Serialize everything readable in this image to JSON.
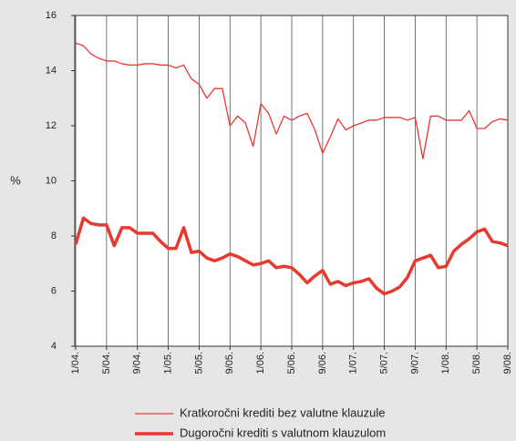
{
  "chart_data": {
    "type": "line",
    "y_label": "%",
    "categories": [
      "1/04.",
      null,
      null,
      null,
      "5/04.",
      null,
      null,
      null,
      "9/04.",
      null,
      null,
      null,
      "1/05.",
      null,
      null,
      null,
      "5/05.",
      null,
      null,
      null,
      "9/05.",
      null,
      null,
      null,
      "1/06.",
      null,
      null,
      null,
      "5/06.",
      null,
      null,
      null,
      "9/06.",
      null,
      null,
      null,
      "1/07.",
      null,
      null,
      null,
      "5/07.",
      null,
      null,
      null,
      "9/07.",
      null,
      null,
      null,
      "1/08.",
      null,
      null,
      null,
      "5/08.",
      null,
      null,
      null,
      "9/08."
    ],
    "series": [
      {
        "name": "Kratkoročni krediti bez valutne klauzule",
        "color": "#e8392f",
        "width": 1.3,
        "values": [
          15.0,
          14.9,
          14.6,
          14.45,
          14.35,
          14.35,
          14.25,
          14.2,
          14.2,
          14.25,
          14.25,
          14.2,
          14.2,
          14.1,
          14.2,
          13.7,
          13.5,
          13.0,
          13.35,
          13.35,
          12.0,
          12.35,
          12.1,
          11.25,
          12.8,
          12.45,
          11.7,
          12.35,
          12.2,
          12.35,
          12.45,
          11.85,
          11.0,
          11.6,
          12.25,
          11.85,
          12.0,
          12.1,
          12.2,
          12.2,
          12.3,
          12.3,
          12.3,
          12.2,
          12.3,
          10.8,
          12.35,
          12.35,
          12.2,
          12.2,
          12.2,
          12.55,
          11.9,
          11.9,
          12.15,
          12.25,
          12.2
        ]
      },
      {
        "name": "Dugoročni krediti s valutnom klauzulom",
        "color": "#e8392f",
        "width": 3.5,
        "values": [
          7.7,
          8.65,
          8.45,
          8.4,
          8.4,
          7.65,
          8.3,
          8.3,
          8.1,
          8.1,
          8.1,
          7.8,
          7.55,
          7.55,
          8.3,
          7.4,
          7.45,
          7.2,
          7.1,
          7.2,
          7.35,
          7.25,
          7.1,
          6.95,
          7.0,
          7.1,
          6.85,
          6.9,
          6.85,
          6.6,
          6.3,
          6.55,
          6.75,
          6.25,
          6.35,
          6.2,
          6.3,
          6.35,
          6.45,
          6.1,
          5.9,
          6.0,
          6.15,
          6.5,
          7.1,
          7.2,
          7.3,
          6.85,
          6.9,
          7.45,
          7.7,
          7.9,
          8.15,
          8.25,
          7.8,
          7.75,
          7.65
        ]
      }
    ],
    "ylim": [
      4,
      16
    ],
    "yticks": [
      4,
      6,
      8,
      10,
      12,
      14,
      16
    ],
    "grid": true
  }
}
